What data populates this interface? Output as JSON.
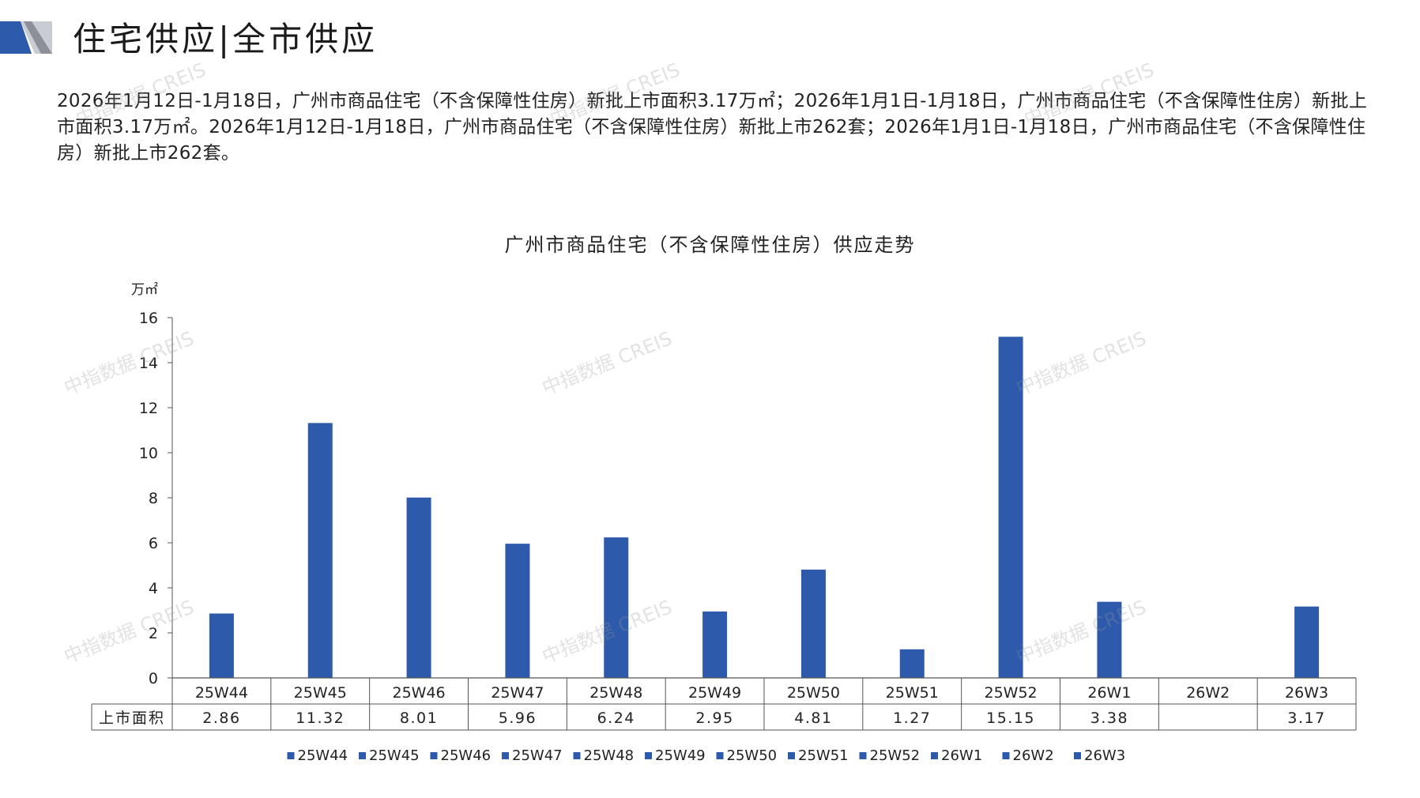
{
  "header": {
    "title": "住宅供应|全市供应"
  },
  "summary": "2026年1月12日-1月18日，广州市商品住宅（不含保障性住房）新批上市面积3.17万㎡；2026年1月1日-1月18日，广州市商品住宅（不含保障性住房）新批上市面积3.17万㎡。2026年1月12日-1月18日，广州市商品住宅（不含保障性住房）新批上市262套；2026年1月1日-1月18日，广州市商品住宅（不含保障性住房）新批上市262套。",
  "watermark": "中指数据 CREIS",
  "colors": {
    "bar": "#2E5AAC",
    "header_accent": "#2E5AAC",
    "header_gray": "#9a9a9a"
  },
  "chart_data": {
    "type": "bar",
    "title": "广州市商品住宅（不含保障性住房）供应走势",
    "ylabel": "万㎡",
    "ylim": [
      0,
      16
    ],
    "yticks": [
      0,
      2,
      4,
      6,
      8,
      10,
      12,
      14,
      16
    ],
    "categories": [
      "25W44",
      "25W45",
      "25W46",
      "25W47",
      "25W48",
      "25W49",
      "25W50",
      "25W51",
      "25W52",
      "26W1",
      "26W2",
      "26W3"
    ],
    "series": [
      {
        "name": "上市面积",
        "values": [
          2.86,
          11.32,
          8.01,
          5.96,
          6.24,
          2.95,
          4.81,
          1.27,
          15.15,
          3.38,
          null,
          3.17
        ],
        "labels": [
          "2.86",
          "11.32",
          "8.01",
          "5.96",
          "6.24",
          "2.95",
          "4.81",
          "1.27",
          "15.15",
          "3.38",
          "",
          "3.17"
        ]
      }
    ],
    "legend": [
      "25W44",
      "25W45",
      "25W46",
      "25W47",
      "25W48",
      "25W49",
      "25W50",
      "25W51",
      "25W52",
      "26W1",
      "26W2",
      "26W3"
    ],
    "legend_position": "bottom",
    "grid": false,
    "data_table": true
  }
}
